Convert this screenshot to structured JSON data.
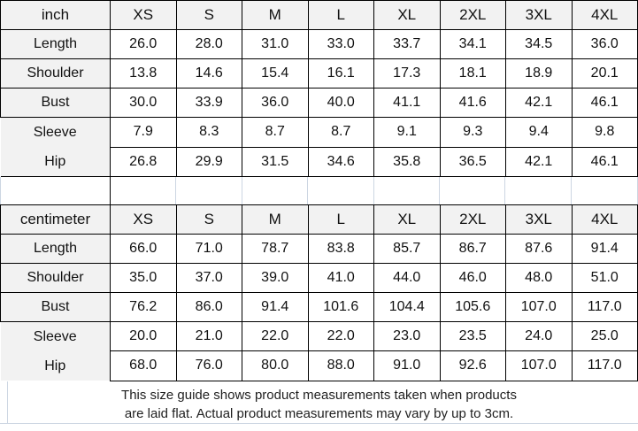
{
  "colors": {
    "header_bg": "#f2f2f2",
    "table_border": "#000000",
    "faint_gridline": "#cdd6e2",
    "text": "#111111"
  },
  "tables": [
    {
      "unit": "inch",
      "sizes": [
        "XS",
        "S",
        "M",
        "L",
        "XL",
        "2XL",
        "3XL",
        "4XL"
      ],
      "rows": [
        {
          "label": "Length",
          "values": [
            "26.0",
            "28.0",
            "31.0",
            "33.0",
            "33.7",
            "34.1",
            "34.5",
            "36.0"
          ]
        },
        {
          "label": "Shoulder",
          "values": [
            "13.8",
            "14.6",
            "15.4",
            "16.1",
            "17.3",
            "18.1",
            "18.9",
            "20.1"
          ]
        },
        {
          "label": "Bust",
          "values": [
            "30.0",
            "33.9",
            "36.0",
            "40.0",
            "41.1",
            "41.6",
            "42.1",
            "46.1"
          ]
        },
        {
          "label": "Sleeve",
          "values": [
            "7.9",
            "8.3",
            "8.7",
            "8.7",
            "9.1",
            "9.3",
            "9.4",
            "9.8"
          ]
        },
        {
          "label": "Hip",
          "values": [
            "26.8",
            "29.9",
            "31.5",
            "34.6",
            "35.8",
            "36.5",
            "42.1",
            "46.1"
          ]
        }
      ]
    },
    {
      "unit": "centimeter",
      "sizes": [
        "XS",
        "S",
        "M",
        "L",
        "XL",
        "2XL",
        "3XL",
        "4XL"
      ],
      "rows": [
        {
          "label": "Length",
          "values": [
            "66.0",
            "71.0",
            "78.7",
            "83.8",
            "85.7",
            "86.7",
            "87.6",
            "91.4"
          ]
        },
        {
          "label": "Shoulder",
          "values": [
            "35.0",
            "37.0",
            "39.0",
            "41.0",
            "44.0",
            "46.0",
            "48.0",
            "51.0"
          ]
        },
        {
          "label": "Bust",
          "values": [
            "76.2",
            "86.0",
            "91.4",
            "101.6",
            "104.4",
            "105.6",
            "107.0",
            "117.0"
          ]
        },
        {
          "label": "Sleeve",
          "values": [
            "20.0",
            "21.0",
            "22.0",
            "22.0",
            "23.0",
            "23.5",
            "24.0",
            "25.0"
          ]
        },
        {
          "label": "Hip",
          "values": [
            "68.0",
            "76.0",
            "80.0",
            "88.0",
            "91.0",
            "92.6",
            "107.0",
            "117.0"
          ]
        }
      ]
    }
  ],
  "footer": {
    "line1": "This size guide shows product measurements taken when products",
    "line2": "are laid flat. Actual product measurements may vary by up to 3cm."
  },
  "chart_data": [
    {
      "type": "table",
      "title": "Size guide (inch)",
      "unit": "inch",
      "columns": [
        "inch",
        "XS",
        "S",
        "M",
        "L",
        "XL",
        "2XL",
        "3XL",
        "4XL"
      ],
      "series": [
        {
          "name": "Length",
          "values": [
            26.0,
            28.0,
            31.0,
            33.0,
            33.7,
            34.1,
            34.5,
            36.0
          ]
        },
        {
          "name": "Shoulder",
          "values": [
            13.8,
            14.6,
            15.4,
            16.1,
            17.3,
            18.1,
            18.9,
            20.1
          ]
        },
        {
          "name": "Bust",
          "values": [
            30.0,
            33.9,
            36.0,
            40.0,
            41.1,
            41.6,
            42.1,
            46.1
          ]
        },
        {
          "name": "Sleeve",
          "values": [
            7.9,
            8.3,
            8.7,
            8.7,
            9.1,
            9.3,
            9.4,
            9.8
          ]
        },
        {
          "name": "Hip",
          "values": [
            26.8,
            29.9,
            31.5,
            34.6,
            35.8,
            36.5,
            42.1,
            46.1
          ]
        }
      ]
    },
    {
      "type": "table",
      "title": "Size guide (centimeter)",
      "unit": "centimeter",
      "columns": [
        "centimeter",
        "XS",
        "S",
        "M",
        "L",
        "XL",
        "2XL",
        "3XL",
        "4XL"
      ],
      "series": [
        {
          "name": "Length",
          "values": [
            66.0,
            71.0,
            78.7,
            83.8,
            85.7,
            86.7,
            87.6,
            91.4
          ]
        },
        {
          "name": "Shoulder",
          "values": [
            35.0,
            37.0,
            39.0,
            41.0,
            44.0,
            46.0,
            48.0,
            51.0
          ]
        },
        {
          "name": "Bust",
          "values": [
            76.2,
            86.0,
            91.4,
            101.6,
            104.4,
            105.6,
            107.0,
            117.0
          ]
        },
        {
          "name": "Sleeve",
          "values": [
            20.0,
            21.0,
            22.0,
            22.0,
            23.0,
            23.5,
            24.0,
            25.0
          ]
        },
        {
          "name": "Hip",
          "values": [
            68.0,
            76.0,
            80.0,
            88.0,
            91.0,
            92.6,
            107.0,
            117.0
          ]
        }
      ]
    }
  ]
}
